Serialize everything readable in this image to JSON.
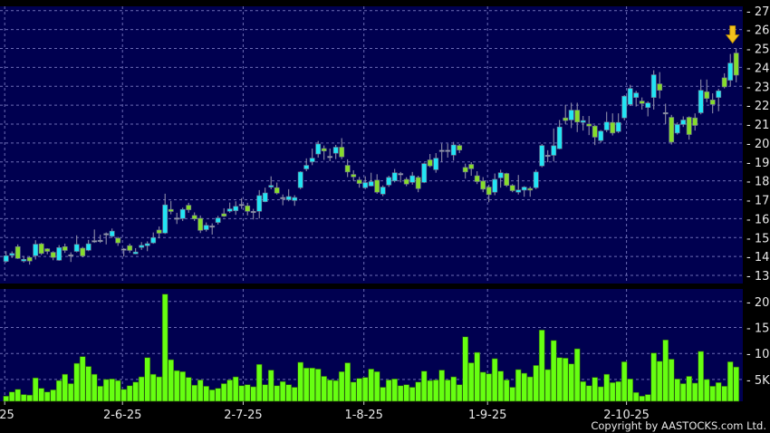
{
  "copyright": "Copyright by AASTOCKS.com Ltd.",
  "colors": {
    "background": "#000050",
    "up": "#22e4f4",
    "down": "#86dc2c",
    "doji": "#a0a0b8",
    "volume": "#66ff11",
    "grid": "#6c6cb4",
    "arrow": "#f4c21c"
  },
  "chart_data": [
    {
      "type": "candlestick",
      "axis_side": "right",
      "ylim": [
        125.7,
        272.3
      ],
      "yticks": [
        130,
        140,
        150,
        160,
        170,
        180,
        190,
        200,
        210,
        220,
        230,
        240,
        250,
        260,
        270
      ],
      "grid": true,
      "marker": {
        "icon": "down-arrow-icon",
        "at_index": 124
      },
      "xticks": [
        {
          "index": 0,
          "label": "-25"
        },
        {
          "index": 20,
          "label": "2-6-25"
        },
        {
          "index": 40.5,
          "label": "2-7-25"
        },
        {
          "index": 61,
          "label": "1-8-25"
        },
        {
          "index": 82,
          "label": "1-9-25"
        },
        {
          "index": 105.6,
          "label": "2-10-25"
        }
      ],
      "ohlc": [
        [
          137.4,
          142.8,
          136.8,
          140.4
        ],
        [
          140.6,
          142.7,
          139.2,
          141.6
        ],
        [
          145.2,
          146.4,
          138.7,
          139.0
        ],
        [
          137.6,
          140.3,
          136.8,
          138.5
        ],
        [
          139.5,
          140.0,
          135.7,
          137.6
        ],
        [
          140.4,
          148.6,
          138.4,
          146.5
        ],
        [
          146.7,
          147.2,
          140.8,
          141.6
        ],
        [
          144.1,
          144.4,
          141.2,
          142.7
        ],
        [
          142.2,
          142.8,
          138.0,
          139.5
        ],
        [
          138.0,
          146.0,
          137.7,
          144.7
        ],
        [
          145.2,
          146.8,
          141.9,
          143.2
        ],
        [
          140.9,
          142.2,
          137.1,
          140.9
        ],
        [
          142.7,
          151.2,
          142.2,
          146.4
        ],
        [
          144.4,
          145.1,
          139.6,
          140.3
        ],
        [
          143.3,
          148.8,
          142.8,
          146.7
        ],
        [
          148.4,
          154.3,
          147.2,
          148.4
        ],
        [
          148.6,
          151.5,
          147.2,
          148.6
        ],
        [
          152.1,
          152.7,
          146.4,
          152.1
        ],
        [
          150.7,
          154.8,
          149.9,
          153.4
        ],
        [
          149.7,
          150.4,
          145.6,
          147.2
        ],
        [
          144.0,
          144.4,
          140.0,
          144.0
        ],
        [
          145.7,
          146.8,
          141.9,
          143.2
        ],
        [
          141.4,
          144.4,
          141.2,
          142.4
        ],
        [
          144.8,
          147.6,
          143.5,
          145.9
        ],
        [
          145.7,
          148.0,
          142.8,
          146.8
        ],
        [
          147.2,
          152.7,
          146.7,
          150.0
        ],
        [
          154.0,
          155.9,
          149.6,
          152.3
        ],
        [
          152.4,
          173.2,
          151.9,
          167.3
        ],
        [
          164.9,
          169.4,
          162.3,
          163.8
        ],
        [
          160.4,
          163.1,
          157.2,
          160.4
        ],
        [
          160.1,
          165.8,
          158.8,
          164.9
        ],
        [
          167.1,
          168.4,
          163.1,
          164.7
        ],
        [
          161.7,
          163.3,
          158.8,
          159.9
        ],
        [
          160.2,
          161.7,
          152.4,
          153.8
        ],
        [
          154.2,
          158.0,
          153.2,
          156.5
        ],
        [
          156.2,
          157.5,
          151.6,
          156.2
        ],
        [
          158.0,
          161.5,
          156.9,
          160.4
        ],
        [
          162.6,
          165.5,
          160.9,
          161.3
        ],
        [
          163.9,
          168.5,
          163.1,
          165.2
        ],
        [
          164.2,
          169.2,
          162.0,
          166.5
        ],
        [
          167.6,
          170.8,
          165.2,
          167.6
        ],
        [
          166.8,
          168.4,
          161.7,
          163.9
        ],
        [
          163.9,
          165.2,
          159.6,
          163.9
        ],
        [
          163.9,
          175.1,
          160.1,
          172.2
        ],
        [
          169.0,
          176.4,
          168.7,
          173.6
        ],
        [
          176.7,
          182.4,
          175.6,
          177.6
        ],
        [
          176.4,
          179.1,
          172.8,
          173.5
        ],
        [
          171.2,
          172.8,
          167.1,
          171.2
        ],
        [
          170.0,
          175.6,
          169.2,
          171.7
        ],
        [
          169.6,
          172.4,
          166.8,
          171.2
        ],
        [
          176.4,
          185.1,
          175.6,
          184.7
        ],
        [
          186.3,
          191.9,
          185.1,
          188.2
        ],
        [
          190.1,
          197.1,
          188.3,
          192.0
        ],
        [
          194.2,
          201.1,
          192.3,
          199.5
        ],
        [
          197.1,
          198.7,
          191.1,
          195.8
        ],
        [
          193.0,
          197.1,
          190.4,
          193.0
        ],
        [
          194.6,
          199.0,
          191.5,
          197.8
        ],
        [
          197.8,
          202.6,
          191.5,
          192.7
        ],
        [
          188.2,
          191.4,
          182.0,
          184.7
        ],
        [
          183.4,
          185.6,
          180.0,
          182.1
        ],
        [
          180.5,
          182.1,
          176.4,
          178.6
        ],
        [
          176.4,
          182.4,
          175.6,
          179.1
        ],
        [
          177.3,
          184.3,
          177.0,
          179.6
        ],
        [
          180.4,
          183.5,
          173.2,
          174.0
        ],
        [
          173.0,
          177.6,
          171.9,
          176.7
        ],
        [
          177.8,
          182.7,
          176.8,
          181.8
        ],
        [
          180.0,
          186.3,
          179.2,
          184.3
        ],
        [
          183.9,
          184.7,
          179.2,
          183.9
        ],
        [
          180.8,
          181.9,
          177.2,
          178.3
        ],
        [
          179.2,
          184.7,
          178.0,
          182.7
        ],
        [
          181.8,
          182.7,
          174.0,
          175.9
        ],
        [
          179.2,
          189.6,
          178.8,
          189.1
        ],
        [
          191.1,
          194.2,
          187.2,
          187.9
        ],
        [
          185.9,
          194.7,
          184.3,
          192.0
        ],
        [
          196.2,
          199.7,
          190.0,
          196.2
        ],
        [
          196.2,
          199.7,
          192.3,
          196.2
        ],
        [
          193.6,
          200.6,
          190.7,
          199.0
        ],
        [
          198.7,
          199.5,
          194.7,
          196.3
        ],
        [
          187.1,
          189.1,
          181.2,
          184.7
        ],
        [
          188.7,
          189.9,
          182.7,
          186.4
        ],
        [
          182.7,
          185.1,
          178.3,
          179.6
        ],
        [
          179.9,
          182.0,
          174.0,
          175.6
        ],
        [
          176.7,
          178.0,
          168.7,
          172.7
        ],
        [
          174.0,
          183.9,
          172.4,
          180.8
        ],
        [
          181.6,
          185.9,
          176.4,
          184.3
        ],
        [
          183.9,
          184.3,
          176.8,
          177.6
        ],
        [
          177.6,
          178.3,
          174.0,
          174.8
        ],
        [
          174.0,
          183.1,
          172.8,
          175.2
        ],
        [
          175.1,
          177.2,
          171.6,
          176.7
        ],
        [
          176.0,
          177.0,
          171.6,
          175.1
        ],
        [
          176.4,
          185.9,
          175.6,
          184.7
        ],
        [
          187.9,
          199.5,
          187.2,
          198.7
        ],
        [
          193.6,
          196.2,
          189.9,
          193.6
        ],
        [
          193.5,
          207.7,
          190.3,
          198.6
        ],
        [
          197.0,
          212.2,
          196.7,
          208.5
        ],
        [
          213.3,
          220.2,
          210.1,
          211.9
        ],
        [
          212.2,
          221.3,
          207.9,
          217.4
        ],
        [
          217.4,
          221.3,
          205.8,
          211.1
        ],
        [
          210.9,
          214.3,
          206.6,
          211.9
        ],
        [
          210.1,
          214.3,
          204.2,
          209.0
        ],
        [
          209.0,
          209.5,
          198.9,
          203.1
        ],
        [
          201.3,
          206.9,
          200.2,
          206.3
        ],
        [
          206.9,
          216.5,
          205.8,
          211.1
        ],
        [
          210.9,
          215.7,
          204.0,
          205.3
        ],
        [
          206.1,
          215.7,
          205.3,
          210.9
        ],
        [
          213.3,
          225.3,
          212.0,
          224.8
        ],
        [
          220.4,
          230.8,
          219.6,
          228.9
        ],
        [
          224.1,
          227.6,
          219.3,
          226.5
        ],
        [
          222.2,
          224.1,
          217.7,
          220.9
        ],
        [
          218.8,
          222.0,
          214.1,
          221.2
        ],
        [
          224.1,
          238.5,
          217.7,
          236.1
        ],
        [
          231.3,
          237.5,
          223.6,
          227.9
        ],
        [
          216.1,
          220.8,
          210.1,
          216.1
        ],
        [
          213.6,
          214.9,
          199.2,
          200.5
        ],
        [
          205.3,
          210.9,
          204.5,
          209.8
        ],
        [
          209.8,
          214.1,
          208.5,
          212.2
        ],
        [
          213.6,
          214.1,
          201.8,
          204.5
        ],
        [
          213.3,
          215.7,
          206.6,
          209.3
        ],
        [
          216.0,
          233.6,
          215.2,
          227.9
        ],
        [
          227.1,
          233.6,
          221.6,
          223.6
        ],
        [
          222.8,
          226.3,
          215.7,
          220.4
        ],
        [
          224.1,
          228.7,
          216.8,
          227.6
        ],
        [
          234.5,
          236.9,
          228.9,
          229.7
        ],
        [
          233.2,
          247.1,
          230.0,
          242.3
        ],
        [
          247.6,
          250.0,
          232.1,
          235.9
        ]
      ]
    },
    {
      "type": "bar",
      "axis_side": "right",
      "ylim": [
        0,
        22.4
      ],
      "yticks": [
        {
          "value": 5,
          "label": "5K"
        },
        {
          "value": 10,
          "label": "10K"
        },
        {
          "value": 15,
          "label": "15K"
        },
        {
          "value": 20,
          "label": "20K"
        }
      ],
      "grid": true,
      "values_k": [
        1.8,
        2.6,
        3.1,
        2.1,
        2.0,
        5.3,
        3.3,
        2.6,
        3.0,
        4.8,
        6.0,
        4.2,
        8.1,
        9.4,
        7.5,
        6.0,
        3.7,
        5.0,
        5.1,
        4.8,
        3.1,
        3.8,
        4.5,
        5.5,
        9.2,
        6.0,
        5.5,
        21.4,
        8.8,
        6.7,
        6.5,
        5.4,
        3.9,
        4.9,
        3.7,
        3.0,
        3.3,
        4.2,
        4.9,
        5.5,
        3.8,
        4.0,
        3.6,
        7.9,
        4.0,
        6.8,
        3.8,
        4.6,
        4.0,
        3.5,
        8.3,
        7.2,
        7.2,
        7.0,
        5.6,
        4.9,
        4.8,
        6.5,
        8.2,
        4.5,
        5.2,
        5.4,
        7.0,
        6.5,
        3.5,
        4.9,
        5.1,
        3.8,
        4.0,
        3.5,
        4.5,
        6.6,
        4.8,
        4.9,
        6.8,
        4.9,
        5.5,
        4.0,
        13.2,
        8.2,
        10.2,
        6.4,
        6.1,
        9.0,
        6.6,
        4.9,
        3.5,
        6.9,
        6.2,
        5.5,
        7.7,
        14.5,
        6.9,
        12.5,
        9.2,
        9.1,
        8.0,
        10.9,
        4.6,
        3.8,
        5.4,
        3.6,
        6.0,
        4.4,
        4.6,
        8.4,
        5.1,
        2.5,
        1.8,
        2.1,
        10.1,
        8.5,
        12.6,
        8.9,
        5.1,
        4.2,
        5.6,
        4.3,
        10.4,
        5.0,
        3.7,
        4.4,
        3.7,
        8.4,
        7.4
      ]
    }
  ]
}
